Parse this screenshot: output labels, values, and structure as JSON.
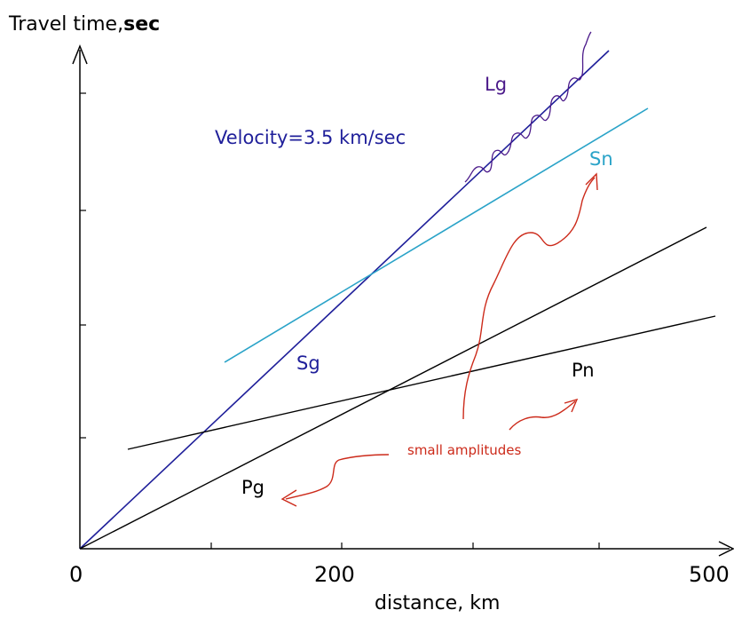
{
  "chart_data": {
    "type": "line",
    "ylabel_prefix": "Travel time,",
    "ylabel_bold": "sec",
    "xlabel": "distance, km",
    "x_tick_labels": [
      "0",
      "200",
      "500"
    ],
    "velocity_note": "Velocity=3.5 km/sec",
    "amplitude_note": "small amplitudes",
    "series": [
      {
        "name": "Lg",
        "color": "#4b1a8a"
      },
      {
        "name": "Sn",
        "color": "#2aa3c8"
      },
      {
        "name": "Sg",
        "color": "#1f1f9a"
      },
      {
        "name": "Pn",
        "color": "#000000"
      },
      {
        "name": "Pg",
        "color": "#000000"
      }
    ],
    "colors": {
      "axis": "#000000",
      "annotation": "#cc2a1a",
      "velocity_text": "#1f1f9a"
    }
  }
}
